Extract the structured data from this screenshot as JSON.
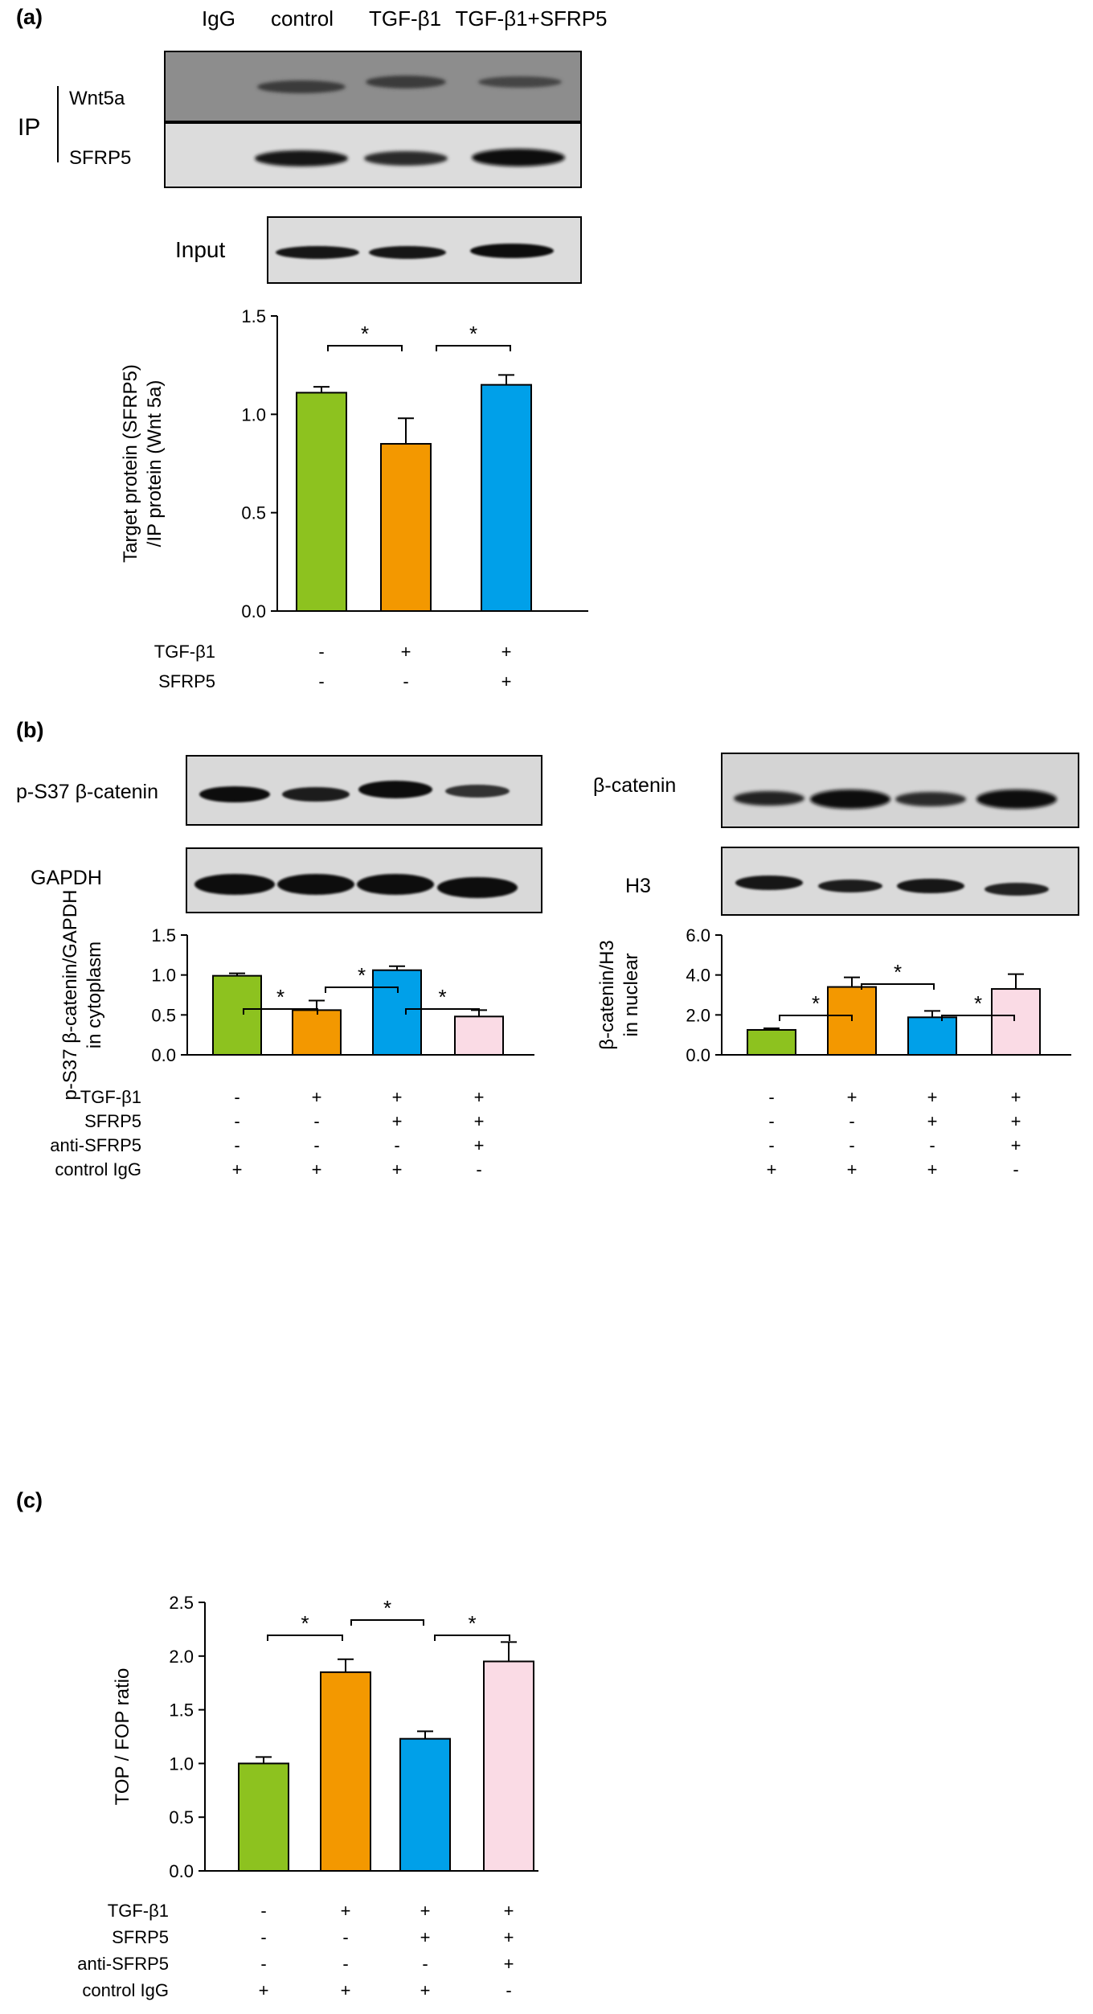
{
  "panels": {
    "a": {
      "label": "(a)",
      "blot_lanes": [
        "IgG",
        "control",
        "TGF-β1",
        "TGF-β1+SFRP5"
      ],
      "ip_label": "IP",
      "blot_rows": [
        "Wnt5a",
        "SFRP5"
      ],
      "input_label": "Input"
    },
    "b": {
      "label": "(b)",
      "left_blot_rows": [
        "p-S37 β-catenin",
        "GAPDH"
      ],
      "right_blot_rows": [
        "β-catenin",
        "H3"
      ]
    },
    "c": {
      "label": "(c)"
    }
  },
  "colors": {
    "control": "#8dc21f",
    "tgf": "#f39800",
    "sfrp5": "#00a0e9",
    "anti": "#fadbe5",
    "band": "#111111",
    "blot_bg": "#d6d6d6"
  },
  "chart_data": [
    {
      "type": "bar",
      "panel": "a",
      "categories": [
        "control",
        "TGF-β1",
        "TGF-β1+SFRP5"
      ],
      "values": [
        1.11,
        0.85,
        1.15
      ],
      "errors": [
        0.03,
        0.13,
        0.05
      ],
      "ylim": [
        0,
        1.5
      ],
      "yticks": [
        "0.0",
        "0.5",
        "1.0",
        "1.5"
      ],
      "ylabel_lines": [
        "Target protein (SFRP5)",
        "/IP protein (Wnt 5a)"
      ],
      "significance": [
        "*",
        "*"
      ],
      "treatments": [
        {
          "name": "TGF-β1",
          "values": [
            "-",
            "+",
            "+"
          ]
        },
        {
          "name": "SFRP5",
          "values": [
            "-",
            "-",
            "+"
          ]
        }
      ]
    },
    {
      "type": "bar",
      "panel": "b-left",
      "values": [
        0.99,
        0.56,
        1.06,
        0.48
      ],
      "errors": [
        0.03,
        0.12,
        0.05,
        0.08
      ],
      "ylim": [
        0,
        1.5
      ],
      "yticks": [
        "0.0",
        "0.5",
        "1.0",
        "1.5"
      ],
      "ylabel_lines": [
        "p-S37 β-catenin/GAPDH",
        "in cytoplasm"
      ],
      "significance": [
        "*",
        "*",
        "*"
      ],
      "treatments": [
        {
          "name": "TGF-β1",
          "values": [
            "-",
            "+",
            "+",
            "+"
          ]
        },
        {
          "name": "SFRP5",
          "values": [
            "-",
            "-",
            "+",
            "+"
          ]
        },
        {
          "name": "anti-SFRP5",
          "values": [
            "-",
            "-",
            "-",
            "+"
          ]
        },
        {
          "name": "control IgG",
          "values": [
            "+",
            "+",
            "+",
            "-"
          ]
        }
      ]
    },
    {
      "type": "bar",
      "panel": "b-right",
      "values": [
        1.25,
        3.4,
        1.88,
        3.3
      ],
      "errors": [
        0.08,
        0.48,
        0.32,
        0.74
      ],
      "ylim": [
        0,
        6
      ],
      "yticks": [
        "0.0",
        "2.0",
        "4.0",
        "6.0"
      ],
      "ylabel_lines": [
        "β-catenin/H3",
        "in nuclear"
      ],
      "significance": [
        "*",
        "*",
        "*"
      ],
      "treatments": [
        {
          "name": "",
          "values": [
            "-",
            "+",
            "+",
            "+"
          ]
        },
        {
          "name": "",
          "values": [
            "-",
            "-",
            "+",
            "+"
          ]
        },
        {
          "name": "",
          "values": [
            "-",
            "-",
            "-",
            "+"
          ]
        },
        {
          "name": "",
          "values": [
            "+",
            "+",
            "+",
            "-"
          ]
        }
      ]
    },
    {
      "type": "bar",
      "panel": "c",
      "values": [
        1.0,
        1.85,
        1.23,
        1.95
      ],
      "errors": [
        0.06,
        0.12,
        0.07,
        0.18
      ],
      "ylim": [
        0,
        2.5
      ],
      "yticks": [
        "0.0",
        "0.5",
        "1.0",
        "1.5",
        "2.0",
        "2.5"
      ],
      "ylabel_lines": [
        "TOP / FOP ratio"
      ],
      "significance": [
        "*",
        "*",
        "*"
      ],
      "treatments": [
        {
          "name": "TGF-β1",
          "values": [
            "-",
            "+",
            "+",
            "+"
          ]
        },
        {
          "name": "SFRP5",
          "values": [
            "-",
            "-",
            "+",
            "+"
          ]
        },
        {
          "name": "anti-SFRP5",
          "values": [
            "-",
            "-",
            "-",
            "+"
          ]
        },
        {
          "name": "control IgG",
          "values": [
            "+",
            "+",
            "+",
            "-"
          ]
        }
      ]
    }
  ]
}
